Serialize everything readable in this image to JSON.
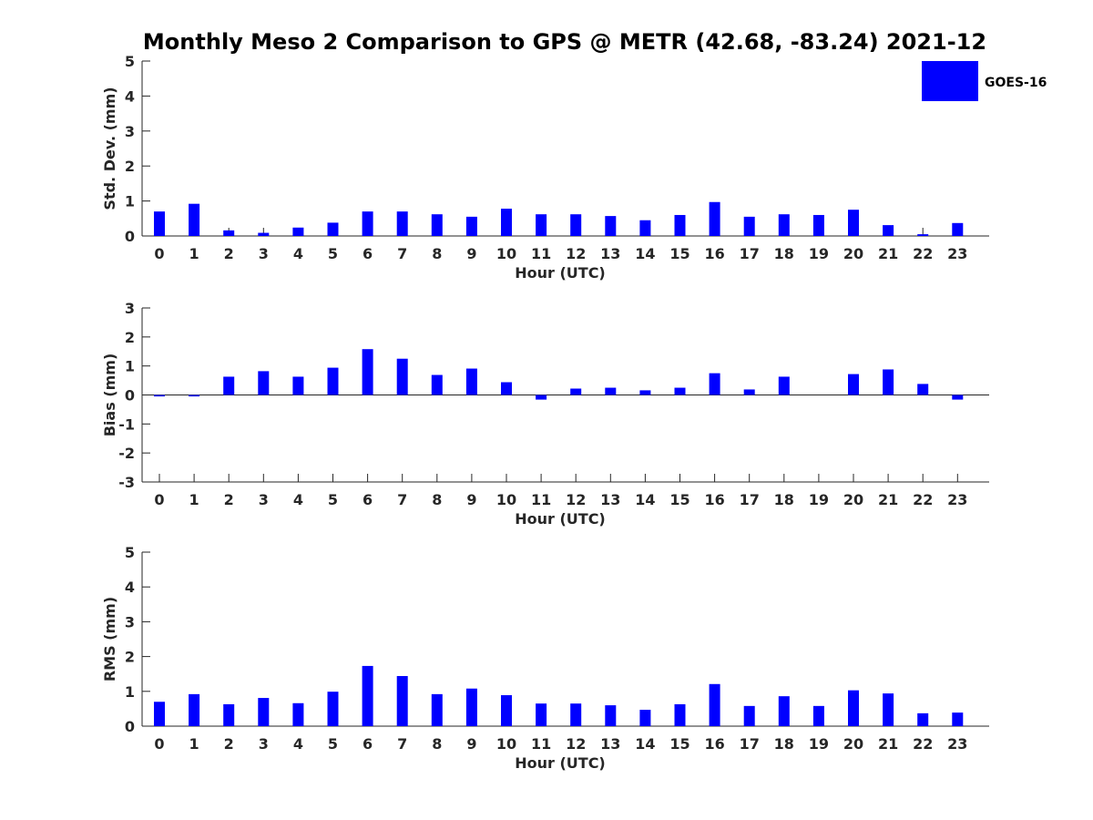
{
  "chart_data": {
    "type": "bar",
    "title": "Monthly Meso 2 Comparison to GPS @ METR (42.68, -83.24) 2021-12",
    "legend": {
      "entries": [
        "GOES-16"
      ],
      "placement": "top-right"
    },
    "bar_color": "#0000ff",
    "categories": [
      "0",
      "1",
      "2",
      "3",
      "4",
      "5",
      "6",
      "7",
      "8",
      "9",
      "10",
      "11",
      "12",
      "13",
      "14",
      "15",
      "16",
      "17",
      "18",
      "19",
      "20",
      "21",
      "22",
      "23"
    ],
    "panels": [
      {
        "xlabel": "Hour (UTC)",
        "ylabel": "Std. Dev. (mm)",
        "ylim": [
          0,
          5
        ],
        "yticks": [
          0,
          1,
          2,
          3,
          4,
          5
        ],
        "series": [
          {
            "name": "GOES-16",
            "values": [
              0.7,
              0.92,
              0.16,
              0.09,
              0.24,
              0.38,
              0.7,
              0.7,
              0.62,
              0.55,
              0.78,
              0.62,
              0.62,
              0.57,
              0.45,
              0.6,
              0.97,
              0.55,
              0.62,
              0.6,
              0.75,
              0.31,
              0.05,
              0.37
            ]
          }
        ]
      },
      {
        "xlabel": "Hour (UTC)",
        "ylabel": "Bias (mm)",
        "ylim": [
          -3,
          3
        ],
        "yticks": [
          -3,
          -2,
          -1,
          0,
          1,
          2,
          3
        ],
        "series": [
          {
            "name": "GOES-16",
            "values": [
              -0.05,
              -0.05,
              0.63,
              0.82,
              0.63,
              0.94,
              1.58,
              1.25,
              0.69,
              0.91,
              0.44,
              -0.16,
              0.22,
              0.25,
              0.16,
              0.25,
              0.75,
              0.19,
              0.63,
              0.0,
              0.72,
              0.88,
              0.38,
              -0.16
            ]
          }
        ]
      },
      {
        "xlabel": "Hour (UTC)",
        "ylabel": "RMS (mm)",
        "ylim": [
          0,
          5
        ],
        "yticks": [
          0,
          1,
          2,
          3,
          4,
          5
        ],
        "series": [
          {
            "name": "GOES-16",
            "values": [
              0.7,
              0.92,
              0.63,
              0.81,
              0.66,
              0.99,
              1.73,
              1.44,
              0.92,
              1.08,
              0.89,
              0.65,
              0.65,
              0.6,
              0.47,
              0.63,
              1.21,
              0.58,
              0.86,
              0.58,
              1.03,
              0.94,
              0.37,
              0.39
            ]
          }
        ]
      }
    ]
  }
}
